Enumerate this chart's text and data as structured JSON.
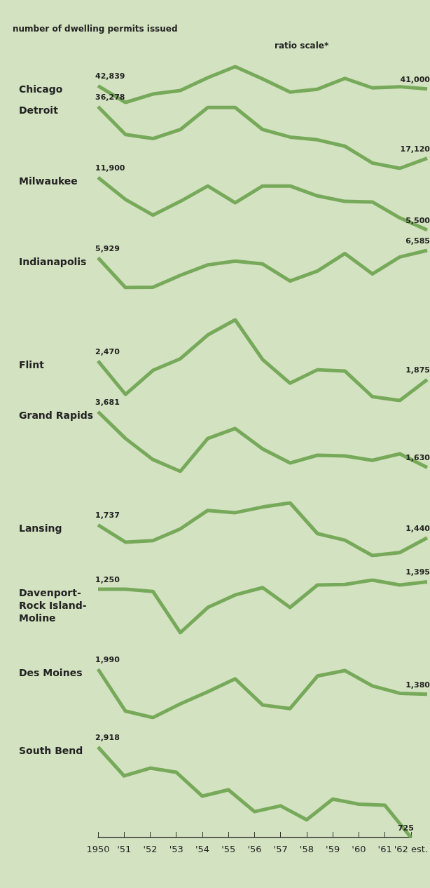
{
  "chart_data": [
    {
      "type": "line",
      "title": "Chicago",
      "annotations": [
        "number of dwelling permits issued",
        "ratio scale*"
      ],
      "log": true,
      "tick_labels": false,
      "categories": [
        null,
        null,
        null,
        null,
        null,
        null,
        null,
        null,
        null,
        null,
        null,
        null,
        null
      ],
      "series": [
        {
          "color": "#77a95a",
          "values": [
            42839,
            33600,
            38000,
            40000,
            48300,
            56800,
            47400,
            39100,
            40800,
            47800,
            41600,
            42300,
            41000
          ],
          "value_labels": [
            "42,839",
            null,
            null,
            null,
            null,
            null,
            null,
            null,
            null,
            null,
            null,
            null,
            "41,000"
          ]
        }
      ]
    },
    {
      "type": "line",
      "title": "Detroit",
      "log": true,
      "tick_labels": false,
      "categories": [
        null,
        null,
        null,
        null,
        null,
        null,
        null,
        null,
        null,
        null,
        null,
        null,
        null
      ],
      "series": [
        {
          "color": "#77a95a",
          "values": [
            36278,
            24200,
            22800,
            26000,
            35800,
            35800,
            26000,
            23300,
            22400,
            20400,
            16000,
            14800,
            17120
          ],
          "value_labels": [
            "36,278",
            null,
            null,
            null,
            null,
            null,
            null,
            null,
            null,
            null,
            null,
            null,
            "17,120"
          ]
        }
      ]
    },
    {
      "type": "line",
      "title": "Milwaukee",
      "log": true,
      "tick_labels": false,
      "categories": [
        null,
        null,
        null,
        null,
        null,
        null,
        null,
        null,
        null,
        null,
        null,
        null,
        null
      ],
      "series": [
        {
          "color": "#77a95a",
          "values": [
            11900,
            8620,
            6850,
            8380,
            10500,
            8210,
            10500,
            10500,
            9080,
            8380,
            8310,
            6580,
            5500
          ],
          "value_labels": [
            "11,900",
            null,
            null,
            null,
            null,
            null,
            null,
            null,
            null,
            null,
            null,
            null,
            "5,500"
          ]
        }
      ]
    },
    {
      "type": "line",
      "title": "Indianapolis",
      "log": true,
      "tick_labels": false,
      "categories": [
        null,
        null,
        null,
        null,
        null,
        null,
        null,
        null,
        null,
        null,
        null,
        null,
        null
      ],
      "series": [
        {
          "color": "#77a95a",
          "values": [
            5929,
            3880,
            3900,
            4620,
            5360,
            5650,
            5430,
            4260,
            4910,
            6300,
            4710,
            6000,
            6585
          ],
          "value_labels": [
            "5,929",
            null,
            null,
            null,
            null,
            null,
            null,
            null,
            null,
            null,
            null,
            null,
            "6,585"
          ]
        }
      ]
    },
    {
      "type": "line",
      "title": "Flint",
      "log": true,
      "tick_labels": false,
      "categories": [
        null,
        null,
        null,
        null,
        null,
        null,
        null,
        null,
        null,
        null,
        null,
        null,
        null
      ],
      "series": [
        {
          "color": "#77a95a",
          "values": [
            2470,
            1510,
            2150,
            2550,
            3620,
            4520,
            2520,
            1780,
            2170,
            2130,
            1460,
            1380,
            1875
          ],
          "value_labels": [
            "2,470",
            null,
            null,
            null,
            null,
            null,
            null,
            null,
            null,
            null,
            null,
            null,
            "1,875"
          ]
        }
      ]
    },
    {
      "type": "line",
      "title": "Grand Rapids",
      "log": true,
      "tick_labels": false,
      "categories": [
        null,
        null,
        null,
        null,
        null,
        null,
        null,
        null,
        null,
        null,
        null,
        null,
        null
      ],
      "series": [
        {
          "color": "#77a95a",
          "values": [
            3681,
            2490,
            1830,
            1540,
            2490,
            2880,
            2140,
            1740,
            1950,
            1930,
            1810,
            1990,
            1630
          ],
          "value_labels": [
            "3,681",
            null,
            null,
            null,
            null,
            null,
            null,
            null,
            null,
            null,
            null,
            null,
            "1,630"
          ]
        }
      ]
    },
    {
      "type": "line",
      "title": "Lansing",
      "log": true,
      "tick_labels": false,
      "categories": [
        null,
        null,
        null,
        null,
        null,
        null,
        null,
        null,
        null,
        null,
        null,
        null,
        null
      ],
      "series": [
        {
          "color": "#77a95a",
          "values": [
            1737,
            1350,
            1380,
            1640,
            2150,
            2080,
            2260,
            2400,
            1530,
            1390,
            1110,
            1160,
            1440
          ],
          "value_labels": [
            "1,737",
            null,
            null,
            null,
            null,
            null,
            null,
            null,
            null,
            null,
            null,
            null,
            "1,440"
          ]
        }
      ]
    },
    {
      "type": "line",
      "title": "Davenport-\nRock Island-\nMoline",
      "log": true,
      "tick_labels": false,
      "categories": [
        null,
        null,
        null,
        null,
        null,
        null,
        null,
        null,
        null,
        null,
        null,
        null,
        null
      ],
      "series": [
        {
          "color": "#77a95a",
          "values": [
            1250,
            1250,
            1210,
            661,
            957,
            1150,
            1280,
            957,
            1330,
            1340,
            1430,
            1330,
            1395
          ],
          "value_labels": [
            "1,250",
            null,
            null,
            null,
            null,
            null,
            null,
            null,
            null,
            null,
            null,
            null,
            "1,395"
          ]
        }
      ]
    },
    {
      "type": "line",
      "title": "Des Moines",
      "log": true,
      "tick_labels": false,
      "categories": [
        null,
        null,
        null,
        null,
        null,
        null,
        null,
        null,
        null,
        null,
        null,
        null,
        null
      ],
      "series": [
        {
          "color": "#77a95a",
          "values": [
            1990,
            1080,
            983,
            1200,
            1430,
            1730,
            1180,
            1120,
            1800,
            1950,
            1560,
            1400,
            1380
          ],
          "value_labels": [
            "1,990",
            null,
            null,
            null,
            null,
            null,
            null,
            null,
            null,
            null,
            null,
            null,
            "1,380"
          ]
        }
      ]
    },
    {
      "type": "line",
      "title": "South Bend",
      "log": true,
      "tick_labels": "x",
      "categories": [
        "1950",
        "'51",
        "'52",
        "'53",
        "'54",
        "'55",
        "'56",
        "'57",
        "'58",
        "'59",
        "'60",
        "'61",
        "'62 est."
      ],
      "series": [
        {
          "color": "#77a95a",
          "values": [
            2918,
            1870,
            2110,
            1980,
            1370,
            1510,
            1080,
            1180,
            952,
            1310,
            1210,
            1190,
            725
          ],
          "value_labels": [
            "2,918",
            null,
            null,
            null,
            null,
            null,
            null,
            null,
            null,
            null,
            null,
            null,
            "725"
          ]
        }
      ]
    }
  ]
}
